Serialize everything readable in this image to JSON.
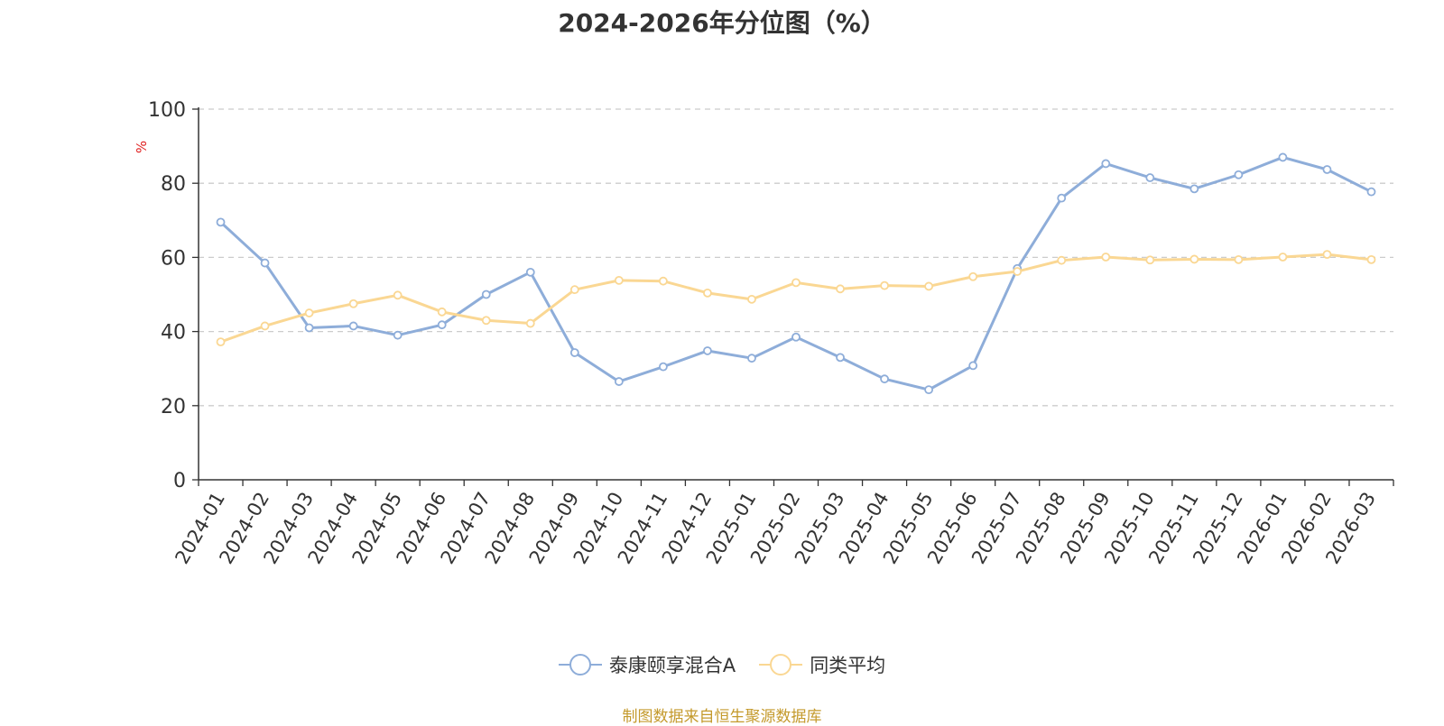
{
  "title": "2024-2026年分位图（%）",
  "source_note": "制图数据来自恒生聚源数据库",
  "chart_data": {
    "type": "line",
    "title": "2024-2026年分位图（%）",
    "ylabel": "%",
    "ylim": [
      0,
      100
    ],
    "yticks": [
      0,
      20,
      40,
      60,
      80,
      100
    ],
    "grid": true,
    "legend_position": "bottom",
    "categories": [
      "2024-01",
      "2024-02",
      "2024-03",
      "2024-04",
      "2024-05",
      "2024-06",
      "2024-07",
      "2024-08",
      "2024-09",
      "2024-10",
      "2024-11",
      "2024-12",
      "2025-01",
      "2025-02",
      "2025-03",
      "2025-04",
      "2025-05",
      "2025-06",
      "2025-07",
      "2025-08",
      "2025-09",
      "2025-10",
      "2025-11",
      "2025-12",
      "2026-01",
      "2026-02",
      "2026-03"
    ],
    "series": [
      {
        "name": "泰康颐享混合A",
        "color": "#8eadd9",
        "values": [
          69.5,
          58.5,
          41.0,
          41.5,
          39.0,
          41.8,
          50.0,
          56.0,
          34.3,
          26.5,
          30.5,
          34.8,
          32.8,
          38.5,
          33.0,
          27.2,
          24.3,
          30.8,
          57.0,
          76.0,
          85.3,
          81.5,
          78.5,
          82.3,
          87.0,
          83.7,
          77.7
        ]
      },
      {
        "name": "同类平均",
        "color": "#fad793",
        "values": [
          37.2,
          41.5,
          45.0,
          47.5,
          49.8,
          45.3,
          43.0,
          42.2,
          51.3,
          53.8,
          53.6,
          50.4,
          48.7,
          53.2,
          51.5,
          52.4,
          52.2,
          54.8,
          56.2,
          59.2,
          60.1,
          59.3,
          59.5,
          59.4,
          60.1,
          60.8,
          59.4
        ]
      }
    ]
  }
}
